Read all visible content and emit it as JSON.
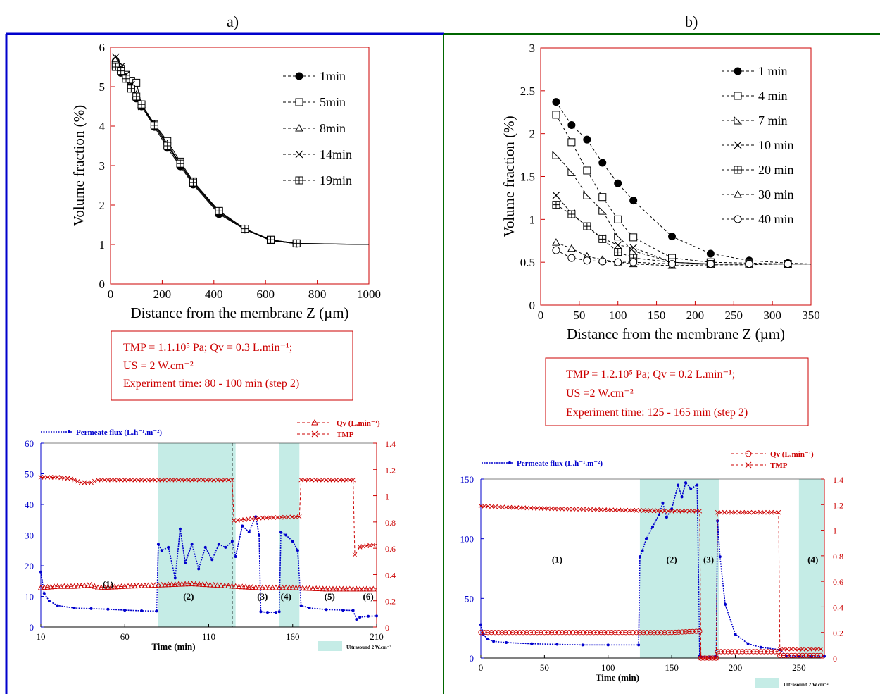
{
  "panel_labels": [
    "a)",
    "b)"
  ],
  "colors": {
    "frame_a": "#0000cc",
    "frame_b": "#006600",
    "red": "#cc0000",
    "blue": "#0000cc",
    "us_shade": "#c5ece6"
  },
  "conditions": {
    "a": {
      "line1": "TMP = 1.1.10⁵ Pa; Qv = 0.3 L.min⁻¹;",
      "line2": "US = 2 W.cm⁻²",
      "line3": "Experiment time:  80 - 100 min (step 2)"
    },
    "b": {
      "line1": "TMP = 1.2.10⁵ Pa; Qv = 0.2 L.min⁻¹;",
      "line2": "US =2 W.cm⁻²",
      "line3": "Experiment time:  125 - 165 min (step 2)"
    }
  },
  "chart_data": [
    {
      "id": "a_profiles",
      "type": "line",
      "title": "",
      "xlabel": "Distance from the membrane Z (µm)",
      "ylabel": "Volume fraction (%)",
      "xlim": [
        0,
        1000
      ],
      "ylim": [
        0,
        6
      ],
      "xticks": [
        0,
        200,
        400,
        600,
        800,
        1000
      ],
      "yticks": [
        0,
        1,
        2,
        3,
        4,
        5,
        6
      ],
      "legend_position": "top-right",
      "series": [
        {
          "name": "1min",
          "marker": "filled-circle",
          "x": [
            20,
            40,
            60,
            80,
            100,
            120,
            170,
            220,
            270,
            320,
            420,
            520,
            620,
            720,
            1000
          ],
          "y": [
            5.65,
            5.35,
            5.2,
            4.95,
            4.7,
            4.5,
            3.98,
            3.45,
            2.98,
            2.52,
            1.77,
            1.38,
            1.1,
            1.02,
            1.0
          ]
        },
        {
          "name": "5min",
          "marker": "open-square",
          "x": [
            20,
            40,
            60,
            80,
            100,
            120,
            170,
            220,
            270,
            320,
            420,
            520,
            620,
            720,
            1000
          ],
          "y": [
            5.55,
            5.45,
            5.3,
            5.15,
            5.1,
            4.55,
            4.05,
            3.62,
            3.1,
            2.6,
            1.85,
            1.4,
            1.12,
            1.03,
            1.0
          ]
        },
        {
          "name": "8min",
          "marker": "open-triangle",
          "x": [
            20,
            40,
            60,
            80,
            100,
            120,
            170,
            220,
            270,
            320,
            420,
            520,
            620,
            720,
            1000
          ],
          "y": [
            5.7,
            5.5,
            5.25,
            5.0,
            4.8,
            4.55,
            4.05,
            3.55,
            3.05,
            2.58,
            1.82,
            1.4,
            1.1,
            1.02,
            1.0
          ]
        },
        {
          "name": "14min",
          "marker": "cross",
          "x": [
            20,
            40,
            60,
            80,
            100,
            120,
            170,
            220,
            270,
            320,
            420,
            520,
            620,
            720,
            1000
          ],
          "y": [
            5.75,
            5.5,
            5.3,
            5.05,
            4.75,
            4.5,
            4.02,
            3.5,
            3.02,
            2.55,
            1.8,
            1.38,
            1.1,
            1.02,
            1.0
          ]
        },
        {
          "name": "19min",
          "marker": "square-plus",
          "x": [
            20,
            40,
            60,
            80,
            100,
            120,
            170,
            220,
            270,
            320,
            420,
            520,
            620,
            720,
            1000
          ],
          "y": [
            5.5,
            5.4,
            5.2,
            4.95,
            4.75,
            4.55,
            4.02,
            3.5,
            3.05,
            2.57,
            1.85,
            1.4,
            1.12,
            1.03,
            1.0
          ]
        }
      ]
    },
    {
      "id": "b_profiles",
      "type": "line",
      "title": "",
      "xlabel": "Distance from the membrane Z (µm)",
      "ylabel": "Volume fraction (%)",
      "xlim": [
        0,
        350
      ],
      "ylim": [
        0,
        3
      ],
      "xticks": [
        0,
        50,
        100,
        150,
        200,
        250,
        300,
        350
      ],
      "yticks": [
        0,
        0.5,
        1,
        1.5,
        2,
        2.5,
        3
      ],
      "legend_position": "top-right",
      "series": [
        {
          "name": "1 min",
          "marker": "filled-circle",
          "x": [
            20,
            40,
            60,
            80,
            100,
            120,
            170,
            220,
            270,
            320,
            350
          ],
          "y": [
            2.37,
            2.1,
            1.93,
            1.66,
            1.42,
            1.22,
            0.8,
            0.6,
            0.52,
            0.49,
            0.48
          ]
        },
        {
          "name": "4 min",
          "marker": "open-square",
          "x": [
            20,
            40,
            60,
            80,
            100,
            120,
            170,
            220,
            270,
            320,
            350
          ],
          "y": [
            2.22,
            1.9,
            1.57,
            1.26,
            1.0,
            0.79,
            0.55,
            0.5,
            0.49,
            0.48,
            0.48
          ]
        },
        {
          "name": "7 min",
          "marker": "open-triangle-right",
          "x": [
            20,
            40,
            60,
            80,
            100,
            120,
            170,
            220,
            270,
            320,
            350
          ],
          "y": [
            1.75,
            1.55,
            1.28,
            1.1,
            0.8,
            0.63,
            0.5,
            0.48,
            0.48,
            0.48,
            0.48
          ]
        },
        {
          "name": "10 min",
          "marker": "cross",
          "x": [
            20,
            40,
            60,
            80,
            100,
            120,
            170,
            220,
            270,
            320,
            350
          ],
          "y": [
            1.28,
            1.07,
            0.92,
            0.78,
            0.7,
            0.67,
            0.5,
            0.48,
            0.48,
            0.48,
            0.48
          ]
        },
        {
          "name": "20 min",
          "marker": "square-plus",
          "x": [
            20,
            40,
            60,
            80,
            100,
            120,
            170,
            220,
            270,
            320,
            350
          ],
          "y": [
            1.17,
            1.06,
            0.92,
            0.77,
            0.62,
            0.55,
            0.5,
            0.48,
            0.48,
            0.48,
            0.48
          ]
        },
        {
          "name": "30 min",
          "marker": "open-triangle",
          "x": [
            20,
            40,
            60,
            80,
            100,
            120,
            170,
            220,
            270,
            320,
            350
          ],
          "y": [
            0.73,
            0.66,
            0.57,
            0.53,
            0.5,
            0.48,
            0.46,
            0.47,
            0.47,
            0.48,
            0.48
          ]
        },
        {
          "name": "40 min",
          "marker": "open-circle",
          "x": [
            20,
            40,
            60,
            80,
            100,
            120,
            170,
            220,
            270,
            320,
            350
          ],
          "y": [
            0.64,
            0.55,
            0.52,
            0.51,
            0.5,
            0.5,
            0.48,
            0.48,
            0.48,
            0.48,
            0.48
          ]
        }
      ]
    },
    {
      "id": "a_flux",
      "type": "line",
      "xlabel": "Time  (min)",
      "xlim": [
        10,
        210
      ],
      "xticks": [
        10,
        60,
        110,
        160,
        210
      ],
      "ylim_left": [
        0,
        60
      ],
      "yticks_left": [
        0,
        10,
        20,
        30,
        40,
        50,
        60
      ],
      "ylim_right": [
        0,
        1.4
      ],
      "yticks_right": [
        0,
        0.2,
        0.4,
        0.6,
        0.8,
        1,
        1.2,
        1.4
      ],
      "us_bands": [
        [
          80,
          126
        ],
        [
          152,
          164
        ]
      ],
      "us_legend": "Ultrasound 2 W.cm⁻²",
      "steps": [
        {
          "label": "(1)",
          "x": 50,
          "y": 13
        },
        {
          "label": "(2)",
          "x": 98,
          "y": 9
        },
        {
          "label": "(3)",
          "x": 142,
          "y": 9
        },
        {
          "label": "(4)",
          "x": 156,
          "y": 9
        },
        {
          "label": "(5)",
          "x": 182,
          "y": 9
        },
        {
          "label": "(6)",
          "x": 205,
          "y": 9
        }
      ],
      "divider_x": 124,
      "series": [
        {
          "name": "Permeate flux (L.h⁻¹.m⁻²)",
          "axis": "left",
          "color": "blue",
          "x": [
            10,
            12,
            15,
            20,
            30,
            40,
            50,
            60,
            70,
            79,
            80,
            82,
            86,
            90,
            93,
            96,
            100,
            104,
            108,
            112,
            116,
            120,
            124,
            126,
            130,
            134,
            138,
            140,
            141,
            145,
            150,
            152,
            153,
            156,
            160,
            163,
            165,
            170,
            180,
            190,
            196,
            198,
            200,
            205,
            210
          ],
          "y": [
            18,
            11,
            8.5,
            7,
            6.2,
            6,
            5.8,
            5.5,
            5.3,
            5.2,
            27,
            25,
            26,
            16,
            32,
            21,
            27,
            19,
            26,
            22,
            27,
            26,
            28,
            23,
            33,
            31,
            36,
            30,
            5,
            4.8,
            4.8,
            5,
            31,
            30,
            28,
            25,
            7,
            6.2,
            5.7,
            5.5,
            5.4,
            2.5,
            3.2,
            3.5,
            3.6
          ]
        },
        {
          "name": "Qv (L.min⁻¹)",
          "axis": "right",
          "color": "red",
          "x": [
            10,
            20,
            30,
            40,
            44,
            60,
            80,
            100,
            126,
            140,
            160,
            180,
            196,
            210
          ],
          "y": [
            0.3,
            0.31,
            0.31,
            0.32,
            0.3,
            0.31,
            0.32,
            0.33,
            0.31,
            0.3,
            0.3,
            0.29,
            0.29,
            0.29
          ]
        },
        {
          "name": "TMP",
          "axis": "right",
          "color": "red",
          "x": [
            10,
            20,
            28,
            34,
            40,
            44,
            60,
            80,
            100,
            124,
            125,
            140,
            164,
            165,
            180,
            196,
            197,
            200,
            210
          ],
          "y": [
            1.14,
            1.14,
            1.13,
            1.1,
            1.1,
            1.12,
            1.12,
            1.12,
            1.12,
            1.12,
            0.81,
            0.83,
            0.84,
            1.12,
            1.12,
            1.12,
            0.55,
            0.61,
            0.63
          ]
        }
      ]
    },
    {
      "id": "b_flux",
      "type": "line",
      "xlabel": "Time  (min)",
      "xlim": [
        0,
        270
      ],
      "xticks": [
        0,
        50,
        100,
        150,
        200,
        250
      ],
      "ylim_left": [
        0,
        150
      ],
      "yticks_left": [
        0,
        50,
        100,
        150
      ],
      "ylim_right": [
        0,
        1.4
      ],
      "yticks_right": [
        0,
        0.2,
        0.4,
        0.6,
        0.8,
        1,
        1.2,
        1.4
      ],
      "us_bands": [
        [
          125,
          187
        ],
        [
          250,
          270
        ]
      ],
      "us_legend": "Ultrasound 2 W.cm⁻²",
      "steps": [
        {
          "label": "(1)",
          "x": 60,
          "y": 80
        },
        {
          "label": "(2)",
          "x": 150,
          "y": 80
        },
        {
          "label": "(3)",
          "x": 179,
          "y": 80
        },
        {
          "label": "(4)",
          "x": 261,
          "y": 80
        }
      ],
      "series": [
        {
          "name": "Permeate flux (L.h⁻¹.m⁻²)",
          "axis": "left",
          "color": "blue",
          "x": [
            0,
            2,
            5,
            10,
            20,
            40,
            60,
            80,
            100,
            124,
            125,
            127,
            130,
            135,
            140,
            143,
            146,
            150,
            155,
            158,
            161,
            165,
            170,
            172,
            173,
            180,
            185,
            186,
            188,
            192,
            200,
            210,
            220,
            235,
            240,
            250,
            260,
            270
          ],
          "y": [
            28,
            20,
            16,
            14,
            13,
            12,
            11.5,
            11,
            11,
            11,
            85,
            90,
            100,
            110,
            120,
            130,
            118,
            125,
            145,
            135,
            147,
            142,
            145,
            2,
            1,
            1,
            2,
            115,
            85,
            45,
            20,
            12,
            9,
            7,
            2,
            1.5,
            1.5,
            1.5
          ]
        },
        {
          "name": "Qv (L.min⁻¹)",
          "axis": "right",
          "color": "red",
          "x": [
            0,
            50,
            100,
            150,
            172,
            173,
            185,
            186,
            200,
            234,
            235,
            250,
            270
          ],
          "y": [
            0.2,
            0.2,
            0.2,
            0.2,
            0.21,
            0,
            0,
            0.05,
            0.05,
            0.05,
            0.02,
            0.02,
            0.02
          ]
        },
        {
          "name": "TMP",
          "axis": "right",
          "color": "red",
          "x": [
            0,
            20,
            50,
            100,
            150,
            172,
            173,
            185,
            186,
            200,
            234,
            235,
            250,
            270
          ],
          "y": [
            1.19,
            1.18,
            1.17,
            1.16,
            1.15,
            1.15,
            0,
            0,
            1.14,
            1.14,
            1.14,
            0.07,
            0.07,
            0.07
          ]
        }
      ]
    }
  ]
}
